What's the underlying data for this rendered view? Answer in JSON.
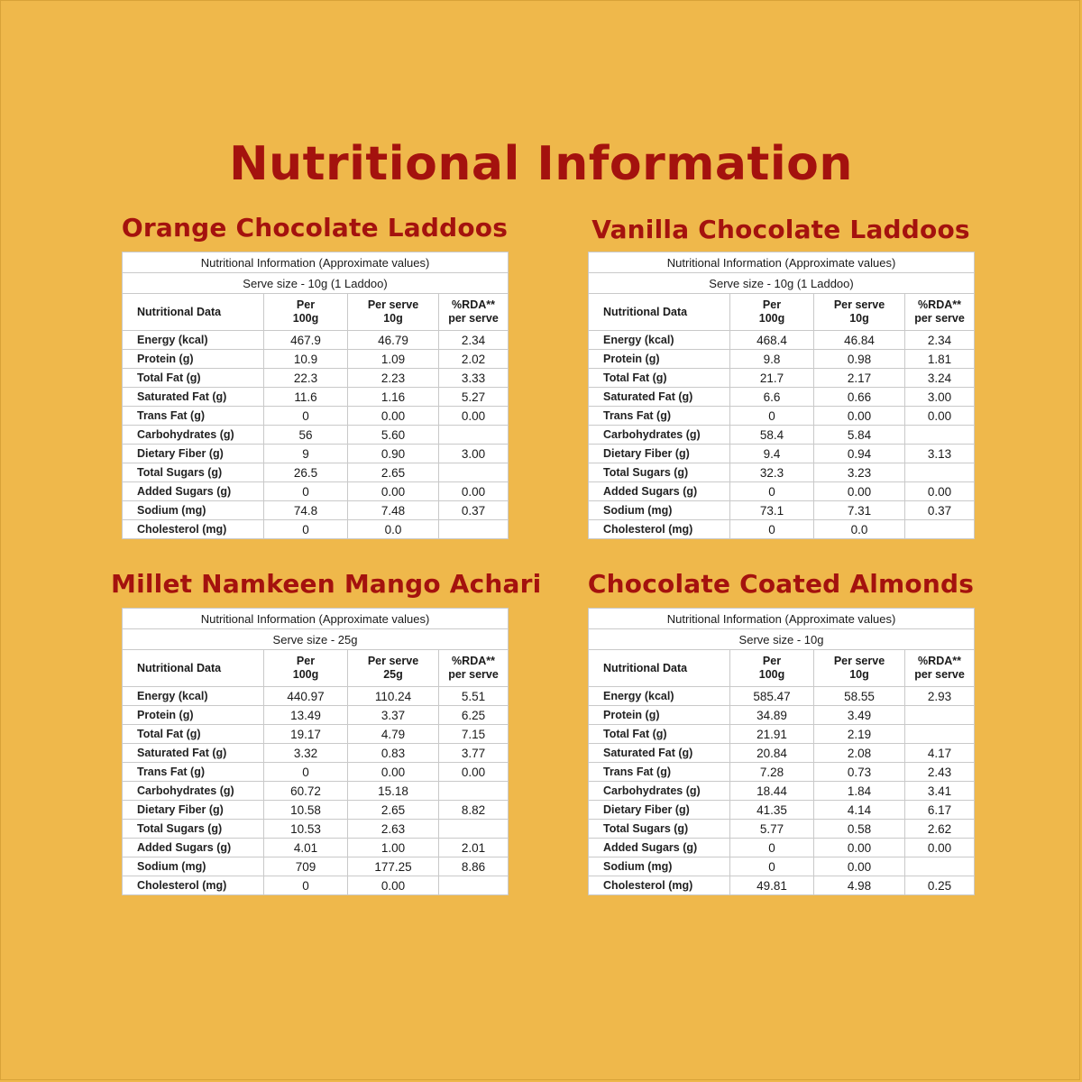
{
  "page_title": "Nutritional Information",
  "header_labels": {
    "caption": "Nutritional Information (Approximate values)",
    "col_name": "Nutritional Data",
    "col_per100": "Per\n100g",
    "col_rda": "%RDA**\nper serve"
  },
  "products": [
    {
      "name": "Orange Chocolate Laddoos",
      "serve_size": "Serve size - 10g (1 Laddoo)",
      "col_serve": "Per serve\n10g",
      "rows": [
        [
          "Energy (kcal)",
          "467.9",
          "46.79",
          "2.34"
        ],
        [
          "Protein (g)",
          "10.9",
          "1.09",
          "2.02"
        ],
        [
          "Total Fat (g)",
          "22.3",
          "2.23",
          "3.33"
        ],
        [
          "Saturated Fat (g)",
          "11.6",
          "1.16",
          "5.27"
        ],
        [
          "Trans Fat (g)",
          "0",
          "0.00",
          "0.00"
        ],
        [
          "Carbohydrates (g)",
          "56",
          "5.60",
          ""
        ],
        [
          "Dietary Fiber (g)",
          "9",
          "0.90",
          "3.00"
        ],
        [
          "Total Sugars (g)",
          "26.5",
          "2.65",
          ""
        ],
        [
          "Added Sugars (g)",
          "0",
          "0.00",
          "0.00"
        ],
        [
          "Sodium (mg)",
          "74.8",
          "7.48",
          "0.37"
        ],
        [
          "Cholesterol (mg)",
          "0",
          "0.0",
          ""
        ]
      ]
    },
    {
      "name": "Vanilla Chocolate Laddoos",
      "serve_size": "Serve size - 10g (1 Laddoo)",
      "col_serve": "Per serve\n10g",
      "rows": [
        [
          "Energy (kcal)",
          "468.4",
          "46.84",
          "2.34"
        ],
        [
          "Protein (g)",
          "9.8",
          "0.98",
          "1.81"
        ],
        [
          "Total Fat (g)",
          "21.7",
          "2.17",
          "3.24"
        ],
        [
          "Saturated Fat (g)",
          "6.6",
          "0.66",
          "3.00"
        ],
        [
          "Trans Fat (g)",
          "0",
          "0.00",
          "0.00"
        ],
        [
          "Carbohydrates (g)",
          "58.4",
          "5.84",
          ""
        ],
        [
          "Dietary Fiber (g)",
          "9.4",
          "0.94",
          "3.13"
        ],
        [
          "Total Sugars (g)",
          "32.3",
          "3.23",
          ""
        ],
        [
          "Added Sugars (g)",
          "0",
          "0.00",
          "0.00"
        ],
        [
          "Sodium (mg)",
          "73.1",
          "7.31",
          "0.37"
        ],
        [
          "Cholesterol (mg)",
          "0",
          "0.0",
          ""
        ]
      ]
    },
    {
      "name": "Millet Namkeen Mango Achari",
      "serve_size": "Serve size - 25g",
      "col_serve": "Per serve\n25g",
      "rows": [
        [
          "Energy (kcal)",
          "440.97",
          "110.24",
          "5.51"
        ],
        [
          "Protein (g)",
          "13.49",
          "3.37",
          "6.25"
        ],
        [
          "Total Fat (g)",
          "19.17",
          "4.79",
          "7.15"
        ],
        [
          "Saturated Fat (g)",
          "3.32",
          "0.83",
          "3.77"
        ],
        [
          "Trans Fat (g)",
          "0",
          "0.00",
          "0.00"
        ],
        [
          "Carbohydrates (g)",
          "60.72",
          "15.18",
          ""
        ],
        [
          "Dietary Fiber (g)",
          "10.58",
          "2.65",
          "8.82"
        ],
        [
          "Total Sugars (g)",
          "10.53",
          "2.63",
          ""
        ],
        [
          "Added Sugars (g)",
          "4.01",
          "1.00",
          "2.01"
        ],
        [
          "Sodium (mg)",
          "709",
          "177.25",
          "8.86"
        ],
        [
          "Cholesterol (mg)",
          "0",
          "0.00",
          ""
        ]
      ]
    },
    {
      "name": "Chocolate Coated Almonds",
      "serve_size": "Serve size - 10g",
      "col_serve": "Per serve\n10g",
      "rows": [
        [
          "Energy (kcal)",
          "585.47",
          "58.55",
          "2.93"
        ],
        [
          "Protein (g)",
          "34.89",
          "3.49",
          ""
        ],
        [
          "Total Fat (g)",
          "21.91",
          "2.19",
          ""
        ],
        [
          "Saturated Fat (g)",
          "20.84",
          "2.08",
          "4.17"
        ],
        [
          "Trans Fat (g)",
          "7.28",
          "0.73",
          "2.43"
        ],
        [
          "Carbohydrates (g)",
          "18.44",
          "1.84",
          "3.41"
        ],
        [
          "Dietary Fiber (g)",
          "41.35",
          "4.14",
          "6.17"
        ],
        [
          "Total Sugars (g)",
          "5.77",
          "0.58",
          "2.62"
        ],
        [
          "Added Sugars (g)",
          "0",
          "0.00",
          "0.00"
        ],
        [
          "Sodium (mg)",
          "0",
          "0.00",
          ""
        ],
        [
          "Cholesterol (mg)",
          "49.81",
          "4.98",
          "0.25"
        ]
      ]
    }
  ]
}
